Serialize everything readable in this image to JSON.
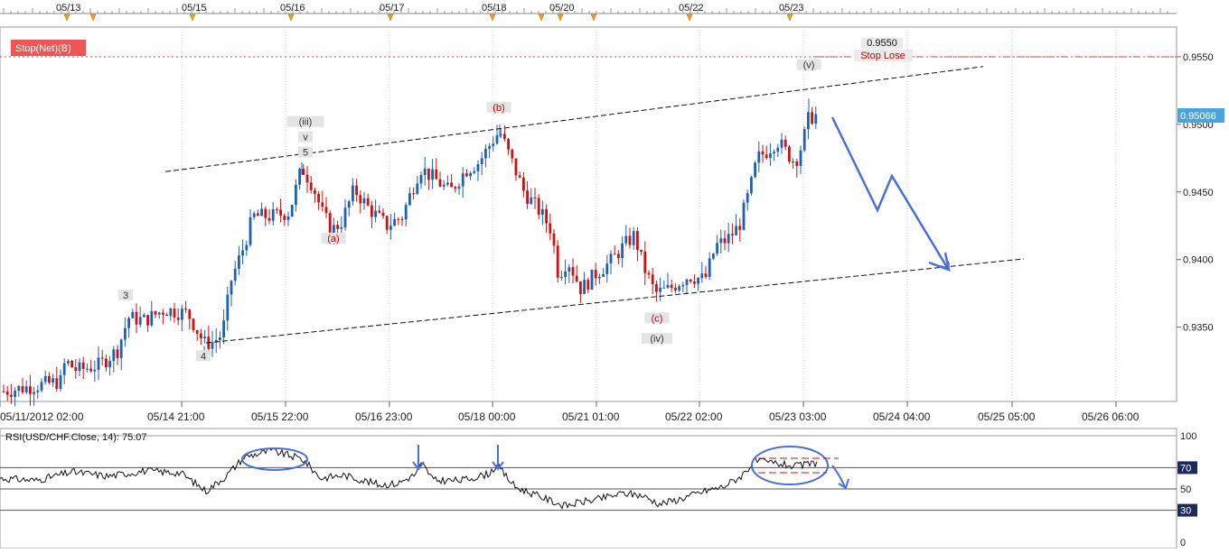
{
  "chart_data": {
    "type": "candlestick",
    "instrument": "USD/CHF",
    "top_date_markers": [
      "05/13",
      "05/15",
      "05/16",
      "05/17",
      "05/18",
      "05/20",
      "05/22",
      "05/23"
    ],
    "x_tick_labels": [
      "05/11/2012 02:00",
      "05/14 21:00",
      "05/15 22:00",
      "05/16 23:00",
      "05/18 00:00",
      "05/21 01:00",
      "05/22 02:00",
      "05/23 03:00",
      "05/24 04:00",
      "05/25 05:00",
      "05/26 06:00"
    ],
    "y_tick_labels": [
      "0.9350",
      "0.9400",
      "0.9450",
      "0.9500",
      "0.9550"
    ],
    "ylim": [
      0.9295,
      0.9572
    ],
    "last_price": "0.95066",
    "last_price_value": 0.95066,
    "stop_price": "0.9550",
    "stop_price_value": 0.955,
    "stop_label": "Stop Lose",
    "stop_badge": "Stop(Net)(B)",
    "wave_labels": [
      {
        "text": "3",
        "x": 139,
        "y": 0.93725,
        "color": "#333333"
      },
      {
        "text": "4",
        "x": 225,
        "y": 0.93275,
        "color": "#333333"
      },
      {
        "text": "(iii)",
        "x": 338,
        "y": 0.95008,
        "color": "#333333"
      },
      {
        "text": "v",
        "x": 338,
        "y": 0.94895,
        "color": "#333333"
      },
      {
        "text": "5",
        "x": 338,
        "y": 0.94782,
        "color": "#333333"
      },
      {
        "text": "(a)",
        "x": 369,
        "y": 0.94145,
        "color": "#cc0000"
      },
      {
        "text": "(b)",
        "x": 552,
        "y": 0.95113,
        "color": "#cc0000"
      },
      {
        "text": "(c)",
        "x": 727,
        "y": 0.93555,
        "color": "#cc0000"
      },
      {
        "text": "(iv)",
        "x": 727,
        "y": 0.93403,
        "color": "#333333"
      },
      {
        "text": "(v)",
        "x": 895,
        "y": 0.9543,
        "color": "#333333"
      }
    ],
    "channel_lines": [
      {
        "name": "upper",
        "x1": 183,
        "y1": 0.9465,
        "x2": 1088,
        "y2": 0.95428
      },
      {
        "name": "lower",
        "x1": 228,
        "y1": 0.93383,
        "x2": 1133,
        "y2": 0.94005
      }
    ],
    "rsi": {
      "label": "RSI(USD/CHF.Close, 14): 75.07",
      "value": 75.07,
      "ylim": [
        0,
        100
      ],
      "y_tick_labels": [
        "100",
        "70",
        "50",
        "30",
        "0"
      ],
      "levels": [
        70,
        50,
        30
      ]
    }
  }
}
